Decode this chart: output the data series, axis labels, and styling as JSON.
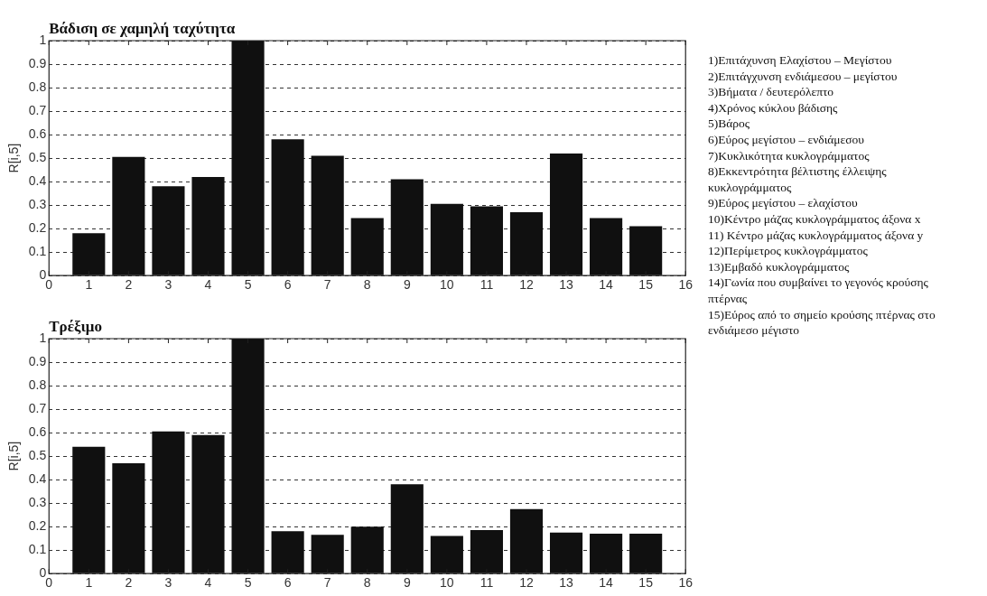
{
  "chart_data": [
    {
      "type": "bar",
      "title": "Βάδιση σε χαμηλή ταχύτητα",
      "ylabel": "R[i,5]",
      "x": [
        1,
        2,
        3,
        4,
        5,
        6,
        7,
        8,
        9,
        10,
        11,
        12,
        13,
        14,
        15
      ],
      "values": [
        0.18,
        0.505,
        0.38,
        0.42,
        1.0,
        0.58,
        0.51,
        0.245,
        0.41,
        0.305,
        0.295,
        0.27,
        0.52,
        0.245,
        0.21
      ],
      "color": "#101010",
      "xlim": [
        0,
        16
      ],
      "xticks": [
        0,
        1,
        2,
        3,
        4,
        5,
        6,
        7,
        8,
        9,
        10,
        11,
        12,
        13,
        14,
        15,
        16
      ],
      "ylim": [
        0,
        1
      ],
      "yticks": [
        0,
        0.1,
        0.2,
        0.3,
        0.4,
        0.5,
        0.6,
        0.7,
        0.8,
        0.9,
        1
      ],
      "grid": "y"
    },
    {
      "type": "bar",
      "title": "Τρέξιμο",
      "ylabel": "R[i,5]",
      "x": [
        1,
        2,
        3,
        4,
        5,
        6,
        7,
        8,
        9,
        10,
        11,
        12,
        13,
        14,
        15
      ],
      "values": [
        0.54,
        0.47,
        0.605,
        0.59,
        1.0,
        0.18,
        0.165,
        0.2,
        0.38,
        0.16,
        0.185,
        0.275,
        0.175,
        0.17,
        0.17
      ],
      "color": "#101010",
      "xlim": [
        0,
        16
      ],
      "xticks": [
        0,
        1,
        2,
        3,
        4,
        5,
        6,
        7,
        8,
        9,
        10,
        11,
        12,
        13,
        14,
        15,
        16
      ],
      "ylim": [
        0,
        1
      ],
      "yticks": [
        0,
        0.1,
        0.2,
        0.3,
        0.4,
        0.5,
        0.6,
        0.7,
        0.8,
        0.9,
        1
      ],
      "grid": "y"
    },
    {
      "type": "other",
      "annotations": [
        "1)Επιτάχυνση Ελαχίστου – Μεγίστου",
        "2)Επιτάγχυνση ενδιάμεσου – μεγίστου",
        "3)Βήματα / δευτερόλεπτο",
        "4)Χρόνος κύκλου βάδισης",
        "5)Βάρος",
        "6)Εύρος μεγίστου – ενδιάμεσου",
        "7)Κυκλικότητα κυκλογράμματος",
        "8)Εκκεντρότητα βέλτιστης έλλειψης κυκλογράμματος",
        "9)Εύρος μεγίστου – ελαχίστου",
        "10)Κέντρο μάζας κυκλογράμματος άξονα x",
        "11) Κέντρο μάζας κυκλογράμματος άξονα y",
        "12)Περίμετρος κυκλογράμματος",
        "13)Εμβαδό κυκλογράμματος",
        "14)Γωνία που συμβαίνει το γεγονός κρούσης πτέρνας",
        "15)Εύρος από το σημείο κρούσης πτέρνας στο ενδιάμεσο μέγιστο"
      ]
    }
  ]
}
